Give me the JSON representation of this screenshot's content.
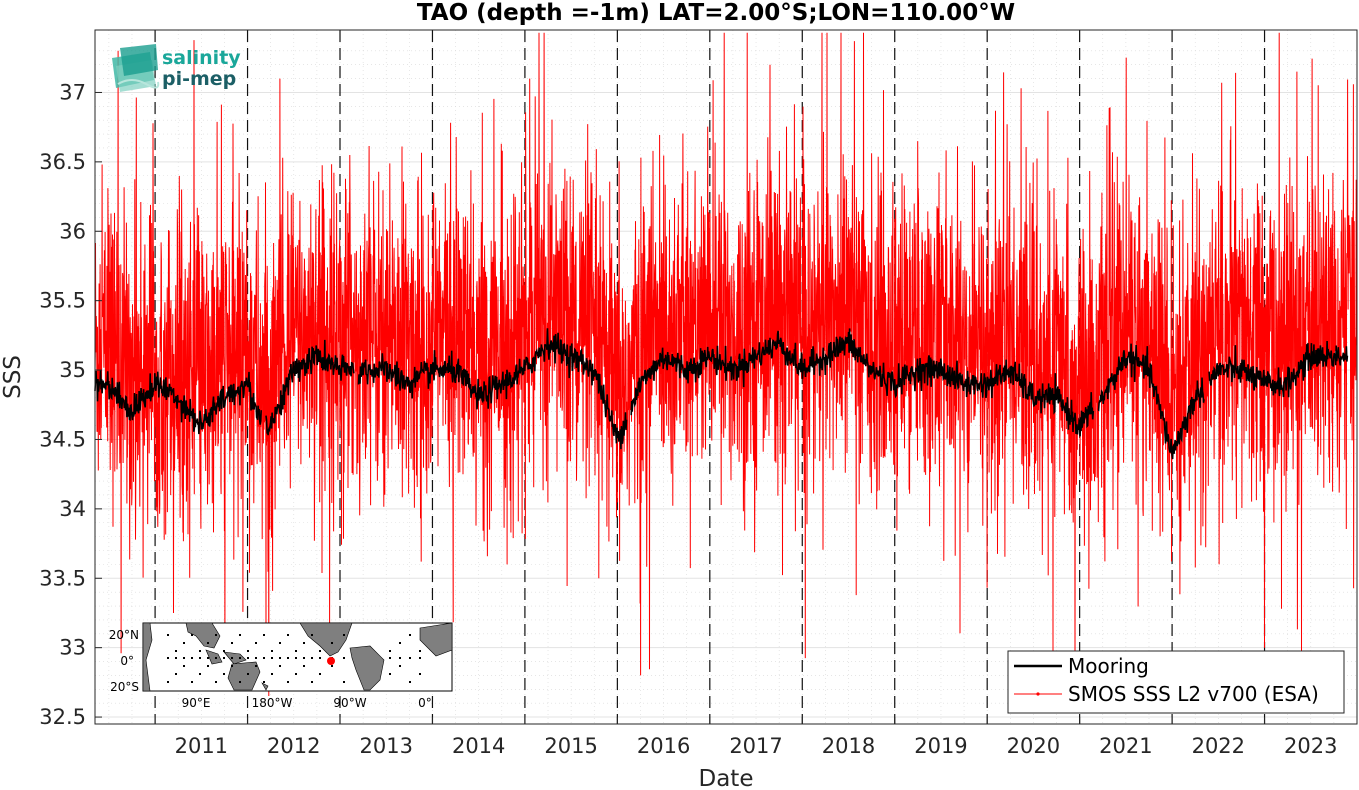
{
  "chart_data": {
    "type": "line",
    "title": "TAO (depth =-1m) LAT=2.00°S;LON=110.00°W",
    "xlabel": "Date",
    "ylabel": "SSS",
    "xlim": [
      2010.35,
      2024.0
    ],
    "ylim": [
      32.45,
      37.45
    ],
    "x_ticks": [
      "2011",
      "2012",
      "2013",
      "2014",
      "2015",
      "2016",
      "2017",
      "2018",
      "2019",
      "2020",
      "2021",
      "2022",
      "2023"
    ],
    "y_ticks": [
      "32.5",
      "33",
      "33.5",
      "34",
      "34.5",
      "35",
      "35.5",
      "36",
      "36.5",
      "37"
    ],
    "grid": true,
    "year_boundaries": "dashed vertical lines at each January 1",
    "legend_position": "bottom-right",
    "series": [
      {
        "name": "Mooring",
        "color": "#000000",
        "segments": [
          [
            2010.35,
            2012.15
          ],
          [
            2012.2,
            2013.15
          ],
          [
            2013.2,
            2016.1
          ],
          [
            2016.15,
            2021.15
          ],
          [
            2021.2,
            2022.35
          ],
          [
            2022.4,
            2023.9
          ]
        ],
        "monthly_mean": {
          "x": [
            2010.5,
            2010.75,
            2011.0,
            2011.25,
            2011.5,
            2011.75,
            2012.0,
            2012.1,
            2012.25,
            2012.5,
            2012.75,
            2013.0,
            2013.25,
            2013.5,
            2013.75,
            2014.0,
            2014.25,
            2014.5,
            2014.75,
            2015.0,
            2015.25,
            2015.5,
            2015.75,
            2016.0,
            2016.25,
            2016.5,
            2016.75,
            2017.0,
            2017.25,
            2017.5,
            2017.75,
            2018.0,
            2018.25,
            2018.5,
            2018.75,
            2019.0,
            2019.25,
            2019.5,
            2019.75,
            2020.0,
            2020.25,
            2020.5,
            2020.75,
            2021.0,
            2021.25,
            2021.5,
            2021.75,
            2022.0,
            2022.25,
            2022.5,
            2022.75,
            2023.0,
            2023.25,
            2023.5,
            2023.75
          ],
          "y": [
            34.9,
            34.7,
            34.9,
            34.8,
            34.6,
            34.8,
            34.9,
            34.7,
            34.6,
            35.0,
            35.1,
            35.0,
            35.0,
            35.0,
            34.9,
            35.0,
            35.0,
            34.8,
            34.9,
            35.0,
            35.2,
            35.1,
            35.0,
            34.5,
            34.9,
            35.1,
            35.0,
            35.1,
            35.0,
            35.1,
            35.2,
            35.0,
            35.1,
            35.2,
            35.0,
            34.9,
            35.0,
            35.0,
            34.9,
            34.9,
            35.0,
            34.8,
            34.8,
            34.6,
            34.8,
            35.1,
            35.0,
            34.4,
            34.8,
            35.0,
            35.0,
            34.9,
            34.9,
            35.1,
            35.1
          ]
        }
      },
      {
        "name": "SMOS SSS L2 v700 (ESA)",
        "color": "#ff0000",
        "sampling": "dense noisy daily retrievals around the mooring value",
        "spread_sd": 0.55,
        "notable_values": [
          {
            "x": 2010.6,
            "y": 37.3
          },
          {
            "x": 2011.2,
            "y": 33.25
          },
          {
            "x": 2012.2,
            "y": 32.9
          },
          {
            "x": 2012.35,
            "y": 37.1
          },
          {
            "x": 2015.05,
            "y": 37.1
          },
          {
            "x": 2016.25,
            "y": 32.8
          },
          {
            "x": 2017.65,
            "y": 37.2
          },
          {
            "x": 2023.35,
            "y": 37.15
          },
          {
            "x": 2023.4,
            "y": 32.95
          },
          {
            "x": 2023.0,
            "y": 33.0
          }
        ]
      }
    ]
  },
  "logo": {
    "line1": "salinity",
    "line2": "pi-mep"
  },
  "inset_map": {
    "y_labels": [
      "20°N",
      "0°",
      "20°S"
    ],
    "x_labels": [
      "90°E",
      "180°W",
      "90°W",
      "0°"
    ],
    "station_marker_color": "#ff0000"
  }
}
